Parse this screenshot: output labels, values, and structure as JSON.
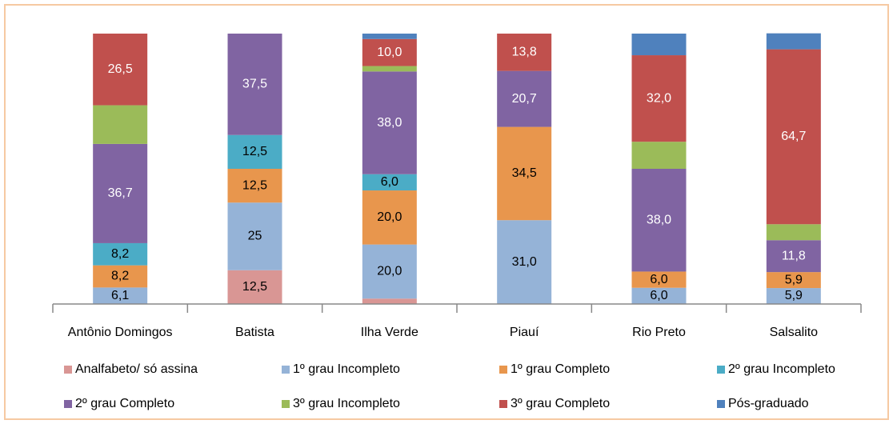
{
  "chart_data": {
    "type": "stacked_bar",
    "categories": [
      "Antônio Domingos",
      "Batista",
      "Ilha Verde",
      "Piauí",
      "Rio Preto",
      "Salsalito"
    ],
    "ylim": [
      0,
      100
    ],
    "legend": "bottom",
    "series": [
      {
        "name": "Analfabeto/ só assina",
        "color": "#d99694",
        "values": [
          0,
          12.5,
          2.0,
          0,
          0,
          0
        ],
        "value_labels": [
          null,
          "12,5",
          null,
          null,
          null,
          null
        ]
      },
      {
        "name": "1º grau Incompleto",
        "color": "#95b3d7",
        "values": [
          6.1,
          25,
          20.0,
          31.0,
          6.0,
          5.9
        ],
        "value_labels": [
          "6,1",
          "25",
          "20,0",
          "31,0",
          "6,0",
          "5,9"
        ]
      },
      {
        "name": "1º grau Completo",
        "color": "#e8964d",
        "values": [
          8.2,
          12.5,
          20.0,
          34.5,
          6.0,
          5.9
        ],
        "value_labels": [
          "8,2",
          "12,5",
          "20,0",
          "34,5",
          "6,0",
          "5,9"
        ]
      },
      {
        "name": "2º grau Incompleto",
        "color": "#4bacc6",
        "values": [
          8.2,
          12.5,
          6.0,
          0,
          0,
          0
        ],
        "value_labels": [
          "8,2",
          "12,5",
          "6,0",
          null,
          null,
          null
        ]
      },
      {
        "name": "2º grau Completo",
        "color": "#8064a2",
        "values": [
          36.7,
          37.5,
          38.0,
          20.7,
          38.0,
          11.8
        ],
        "value_labels": [
          "36,7",
          "37,5",
          "38,0",
          "20,7",
          "38,0",
          "11,8"
        ]
      },
      {
        "name": "3º grau Incompleto",
        "color": "#9bbb59",
        "values": [
          14.3,
          0,
          2.0,
          0,
          10.0,
          5.9
        ],
        "value_labels": [
          null,
          null,
          null,
          null,
          null,
          null
        ]
      },
      {
        "name": "3º grau Completo",
        "color": "#c0504d",
        "values": [
          26.5,
          0,
          10.0,
          13.8,
          32.0,
          64.7
        ],
        "value_labels": [
          "26,5",
          null,
          "10,0",
          "13,8",
          "32,0",
          "64,7"
        ]
      },
      {
        "name": "Pós-graduado",
        "color": "#4f81bd",
        "values": [
          0,
          0,
          2.0,
          0,
          8.0,
          5.9
        ],
        "value_labels": [
          null,
          null,
          null,
          null,
          null,
          null
        ]
      }
    ]
  }
}
